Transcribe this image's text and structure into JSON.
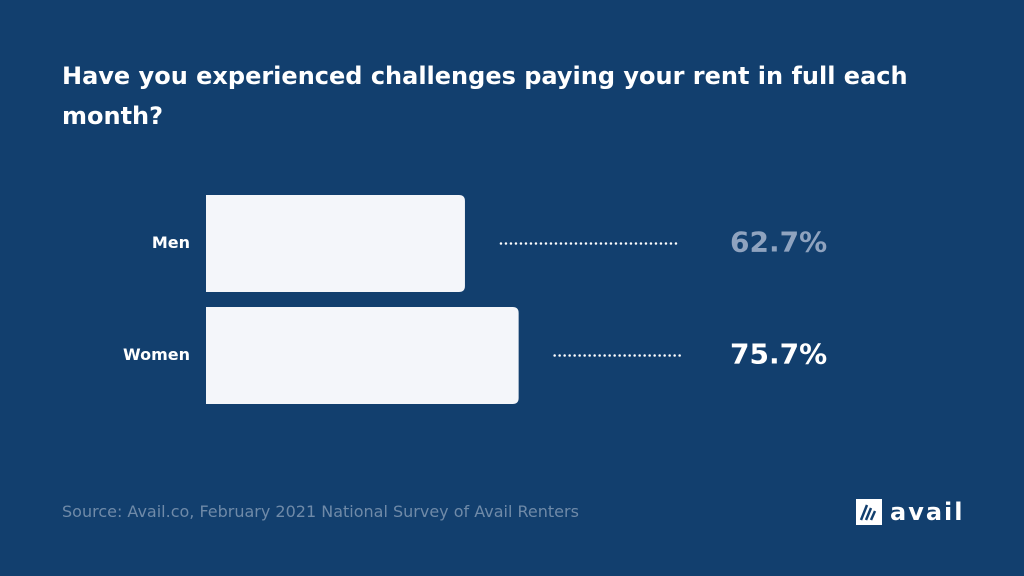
{
  "chart_data": {
    "type": "hbar",
    "title": "Have you experienced challenges paying your rent in full each month?",
    "categories": [
      "Men",
      "Women"
    ],
    "values": [
      62.7,
      75.7
    ],
    "value_labels": [
      "62.7%",
      "75.7%"
    ],
    "value_label_colors": [
      "#8fa3bf",
      "#ffffff"
    ],
    "color": "#f4f6fa",
    "xlim": [
      0,
      100
    ],
    "source": "Source: Avail.co, February 2021 National Survey of Avail Renters",
    "logo": "avail"
  }
}
